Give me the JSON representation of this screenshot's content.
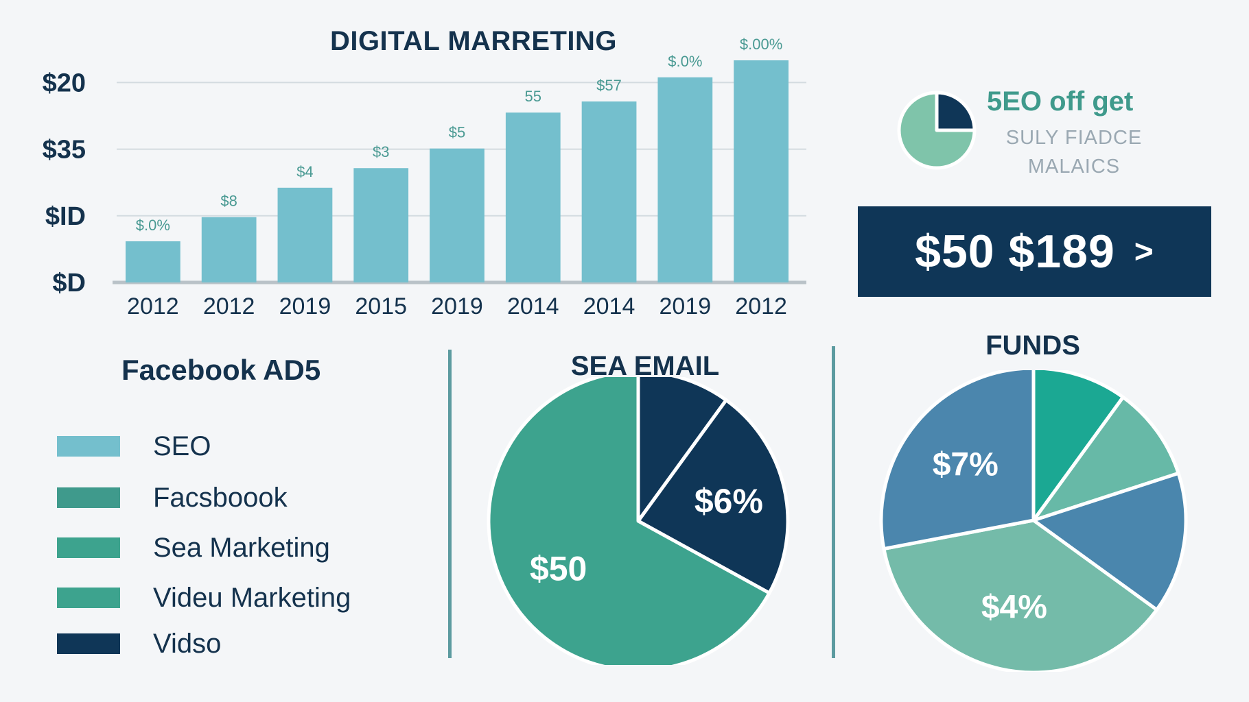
{
  "chart_data": [
    {
      "type": "bar",
      "title": "DIGITAL MARRETING",
      "categories": [
        "2012",
        "2012",
        "2019",
        "2015",
        "2019",
        "2014",
        "2014",
        "2019",
        "2012"
      ],
      "values": [
        0.63,
        1.0,
        1.45,
        1.75,
        2.05,
        2.6,
        2.77,
        3.14,
        3.4
      ],
      "data_labels": [
        "$.0%",
        "$8",
        "$4",
        "$3",
        "$5",
        "55",
        "$57",
        "$.0%",
        "$.00%"
      ],
      "y_tick_labels": [
        "$D",
        "$ID",
        "$35",
        "$20"
      ],
      "ylim": [
        0,
        3.4
      ],
      "grid": true,
      "colors": {
        "bar": "#74bfcd",
        "axis": "#b9c2c8",
        "grid": "#d3dbe0",
        "label": "#4a9a93"
      }
    },
    {
      "type": "pie",
      "title": "SEA EMAIL",
      "slices": [
        {
          "value": 0.1,
          "label": "",
          "color": "#0f3657"
        },
        {
          "value": 0.23,
          "label": "$6%",
          "color": "#0f3657"
        },
        {
          "value": 0.67,
          "label": "$50",
          "color": "#3da38e"
        }
      ]
    },
    {
      "type": "pie",
      "title": "FUNDS",
      "slices": [
        {
          "value": 0.1,
          "label": "",
          "color": "#1ba893"
        },
        {
          "value": 0.1,
          "label": "",
          "color": "#67b9a7"
        },
        {
          "value": 0.15,
          "label": "",
          "color": "#4a86ad"
        },
        {
          "value": 0.37,
          "label": "$4%",
          "color": "#74bba9"
        },
        {
          "value": 0.28,
          "label": "$7%",
          "color": "#4b86ad"
        }
      ]
    },
    {
      "type": "pie",
      "title": "",
      "slices": [
        {
          "value": 0.25,
          "label": "",
          "color": "#0f3657"
        },
        {
          "value": 0.75,
          "label": "",
          "color": "#7fc4aa"
        }
      ]
    }
  ],
  "promo": {
    "headline": "5EO off get",
    "sub_line1": "SULY FIADCE",
    "sub_line2": "MALAICS"
  },
  "cta": {
    "label": "$50 $189",
    "chevron": ">"
  },
  "legend": {
    "title": "Facebook AD5",
    "items": [
      {
        "label": "SEO",
        "color": "#74bfcd"
      },
      {
        "label": "Facsboook",
        "color": "#3f9a8c"
      },
      {
        "label": "Sea Marketing",
        "color": "#3da38e"
      },
      {
        "label": "Videu Marketing",
        "color": "#3da38e"
      },
      {
        "label": "Vidso",
        "color": "#0f3657"
      }
    ]
  }
}
